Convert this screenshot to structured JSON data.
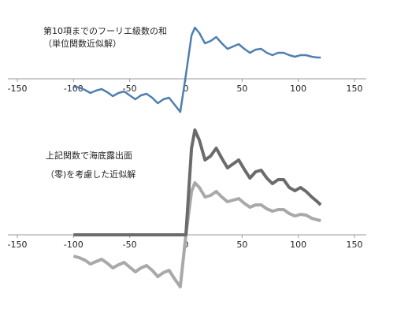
{
  "chart_data": [
    {
      "type": "line",
      "title": [
        "第10項までのフーリエ級数の和",
        "（単位関数近似解）"
      ],
      "x": [
        -100,
        -95,
        -90,
        -85,
        -80,
        -75,
        -70,
        -65,
        -60,
        -55,
        -50,
        -45,
        -40,
        -35,
        -30,
        -25,
        -20,
        -15,
        -10,
        -5,
        0,
        5,
        8,
        12,
        17,
        22,
        27,
        32,
        37,
        42,
        47,
        52,
        57,
        62,
        67,
        72,
        77,
        82,
        87,
        92,
        97,
        102,
        107,
        112,
        117,
        120
      ],
      "series": [
        {
          "color": "#4f7fb0",
          "width": 2.5,
          "values": [
            -0.2,
            -0.22,
            -0.28,
            -0.36,
            -0.3,
            -0.26,
            -0.34,
            -0.44,
            -0.36,
            -0.32,
            -0.42,
            -0.52,
            -0.42,
            -0.38,
            -0.48,
            -0.62,
            -0.52,
            -0.48,
            -0.66,
            -0.84,
            0.1,
            1.1,
            1.3,
            1.16,
            0.9,
            0.96,
            1.06,
            0.9,
            0.76,
            0.82,
            0.88,
            0.76,
            0.66,
            0.74,
            0.76,
            0.66,
            0.6,
            0.66,
            0.66,
            0.6,
            0.56,
            0.6,
            0.6,
            0.56,
            0.54,
            0.54
          ]
        }
      ],
      "xlim": [
        -150,
        150
      ],
      "xticks": [
        -150,
        -100,
        -50,
        0,
        50,
        100,
        150
      ],
      "ylim": [
        -1.0,
        1.4
      ]
    },
    {
      "type": "line",
      "title": [
        "上記関数で海底露出面",
        "（零)を考慮した近似解"
      ],
      "x": [
        -100,
        -95,
        -90,
        -85,
        -80,
        -75,
        -70,
        -65,
        -60,
        -55,
        -50,
        -45,
        -40,
        -35,
        -30,
        -25,
        -20,
        -15,
        -10,
        -5,
        0,
        5,
        8,
        12,
        17,
        22,
        27,
        32,
        37,
        42,
        47,
        52,
        57,
        62,
        67,
        72,
        77,
        82,
        87,
        92,
        97,
        102,
        107,
        112,
        117,
        120
      ],
      "series": [
        {
          "color": "#a9a9a9",
          "width": 4,
          "values": [
            -0.54,
            -0.58,
            -0.64,
            -0.74,
            -0.68,
            -0.62,
            -0.72,
            -0.84,
            -0.76,
            -0.7,
            -0.82,
            -0.94,
            -0.84,
            -0.78,
            -0.9,
            -1.06,
            -0.96,
            -0.9,
            -1.12,
            -1.32,
            0,
            1.1,
            1.32,
            1.2,
            0.96,
            1.0,
            1.1,
            0.96,
            0.84,
            0.88,
            0.92,
            0.8,
            0.7,
            0.76,
            0.76,
            0.66,
            0.6,
            0.64,
            0.64,
            0.54,
            0.48,
            0.52,
            0.5,
            0.42,
            0.38,
            0.36
          ]
        },
        {
          "color": "#6b6b6b",
          "width": 4,
          "values": [
            0,
            0,
            0,
            0,
            0,
            0,
            0,
            0,
            0,
            0,
            0,
            0,
            0,
            0,
            0,
            0,
            0,
            0,
            0,
            0,
            0,
            2.2,
            2.66,
            2.4,
            1.9,
            2.0,
            2.2,
            1.94,
            1.7,
            1.8,
            1.9,
            1.66,
            1.44,
            1.6,
            1.64,
            1.44,
            1.3,
            1.4,
            1.4,
            1.2,
            1.12,
            1.2,
            1.1,
            0.96,
            0.84,
            0.76
          ]
        }
      ],
      "xlim": [
        -150,
        150
      ],
      "xticks": [
        -150,
        -100,
        -50,
        0,
        50,
        100,
        150
      ],
      "ylim": [
        -1.6,
        3.0
      ]
    }
  ]
}
